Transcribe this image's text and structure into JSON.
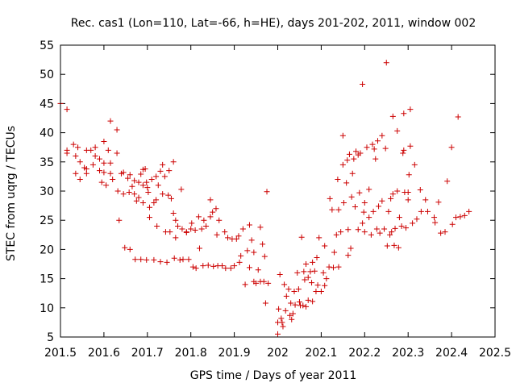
{
  "chart_data": {
    "type": "scatter",
    "title": "Rec. cas1 (Lon=110, Lat=-66, h=HE), days 201-202, 2011, window 002",
    "xlabel": "GPS time / Days of year 2011",
    "ylabel": "STEC from uqrg / TECUs",
    "xlim": [
      201.5,
      202.5
    ],
    "ylim": [
      5,
      55
    ],
    "xticks": [
      201.5,
      201.6,
      201.7,
      201.8,
      201.9,
      202,
      202.1,
      202.2,
      202.3,
      202.4,
      202.5
    ],
    "xtick_labels": [
      "201.5",
      "201.6",
      "201.7",
      "201.8",
      "201.9",
      "202",
      "202.1",
      "202.2",
      "202.3",
      "202.4",
      "202.5"
    ],
    "yticks": [
      5,
      10,
      15,
      20,
      25,
      30,
      35,
      40,
      45,
      50,
      55
    ],
    "ytick_labels": [
      "5",
      "10",
      "15",
      "20",
      "25",
      "30",
      "35",
      "40",
      "45",
      "50",
      "55"
    ],
    "grid": false,
    "marker": "+",
    "color": "#cc0000",
    "series": [
      {
        "name": "STEC",
        "points": [
          [
            201.5,
            45
          ],
          [
            201.515,
            44
          ],
          [
            201.515,
            37
          ],
          [
            201.515,
            36.5
          ],
          [
            201.53,
            38
          ],
          [
            201.535,
            36
          ],
          [
            201.54,
            37.5
          ],
          [
            201.535,
            33
          ],
          [
            201.545,
            35
          ],
          [
            201.545,
            32
          ],
          [
            201.555,
            34
          ],
          [
            201.56,
            37
          ],
          [
            201.56,
            33
          ],
          [
            201.56,
            33.8
          ],
          [
            201.57,
            37
          ],
          [
            201.575,
            34.5
          ],
          [
            201.58,
            36
          ],
          [
            201.58,
            37.5
          ],
          [
            201.59,
            35.5
          ],
          [
            201.59,
            33.5
          ],
          [
            201.595,
            31.5
          ],
          [
            201.6,
            38.5
          ],
          [
            201.6,
            34.8
          ],
          [
            201.6,
            33.2
          ],
          [
            201.605,
            31
          ],
          [
            201.61,
            37
          ],
          [
            201.615,
            42
          ],
          [
            201.615,
            34.8
          ],
          [
            201.615,
            33
          ],
          [
            201.62,
            32
          ],
          [
            201.63,
            40.5
          ],
          [
            201.63,
            36.5
          ],
          [
            201.632,
            30
          ],
          [
            201.635,
            25
          ],
          [
            201.64,
            33
          ],
          [
            201.645,
            33.2
          ],
          [
            201.645,
            29.5
          ],
          [
            201.648,
            20.3
          ],
          [
            201.655,
            32.2
          ],
          [
            201.658,
            29.8
          ],
          [
            201.66,
            32.8
          ],
          [
            201.66,
            20
          ],
          [
            201.665,
            30.8
          ],
          [
            201.67,
            31.8
          ],
          [
            201.67,
            29.5
          ],
          [
            201.672,
            18.3
          ],
          [
            201.675,
            28.3
          ],
          [
            201.68,
            31.5
          ],
          [
            201.68,
            28.9
          ],
          [
            201.685,
            32.9
          ],
          [
            201.685,
            18.3
          ],
          [
            201.69,
            33.7
          ],
          [
            201.69,
            31
          ],
          [
            201.69,
            28
          ],
          [
            201.695,
            33.8
          ],
          [
            201.698,
            31.5
          ],
          [
            201.698,
            18.2
          ],
          [
            201.7,
            30.6
          ],
          [
            201.702,
            29.8
          ],
          [
            201.705,
            27.2
          ],
          [
            201.705,
            25.5
          ],
          [
            201.71,
            32
          ],
          [
            201.715,
            18.2
          ],
          [
            201.715,
            28
          ],
          [
            201.72,
            32.5
          ],
          [
            201.72,
            28.5
          ],
          [
            201.722,
            24
          ],
          [
            201.725,
            31
          ],
          [
            201.73,
            33.4
          ],
          [
            201.73,
            17.9
          ],
          [
            201.735,
            34.5
          ],
          [
            201.735,
            29.5
          ],
          [
            201.74,
            32.5
          ],
          [
            201.742,
            23
          ],
          [
            201.745,
            17.8
          ],
          [
            201.748,
            29.3
          ],
          [
            201.75,
            33.5
          ],
          [
            201.752,
            23
          ],
          [
            201.755,
            28.7
          ],
          [
            201.76,
            35
          ],
          [
            201.76,
            26.2
          ],
          [
            201.762,
            18.5
          ],
          [
            201.765,
            25
          ],
          [
            201.765,
            22
          ],
          [
            201.77,
            24
          ],
          [
            201.775,
            18.2
          ],
          [
            201.778,
            30.3
          ],
          [
            201.78,
            23.5
          ],
          [
            201.782,
            18.3
          ],
          [
            201.79,
            23
          ],
          [
            201.79,
            22.9
          ],
          [
            201.795,
            18.3
          ],
          [
            201.8,
            23.5
          ],
          [
            201.802,
            24.5
          ],
          [
            201.805,
            17
          ],
          [
            201.81,
            23.3
          ],
          [
            201.812,
            16.8
          ],
          [
            201.818,
            25.6
          ],
          [
            201.82,
            20.2
          ],
          [
            201.825,
            23.5
          ],
          [
            201.828,
            17.2
          ],
          [
            201.83,
            25
          ],
          [
            201.835,
            24
          ],
          [
            201.84,
            17.3
          ],
          [
            201.845,
            25.6
          ],
          [
            201.845,
            28.5
          ],
          [
            201.85,
            26.4
          ],
          [
            201.852,
            17.1
          ],
          [
            201.858,
            27
          ],
          [
            201.86,
            22.5
          ],
          [
            201.862,
            17.2
          ],
          [
            201.865,
            25
          ],
          [
            201.872,
            17.2
          ],
          [
            201.878,
            23
          ],
          [
            201.88,
            16.8
          ],
          [
            201.885,
            22
          ],
          [
            201.892,
            16.8
          ],
          [
            201.895,
            21.8
          ],
          [
            201.9,
            17.2
          ],
          [
            201.905,
            21.8
          ],
          [
            201.91,
            22.3
          ],
          [
            201.912,
            17.8
          ],
          [
            201.915,
            18.9
          ],
          [
            201.92,
            23.5
          ],
          [
            201.925,
            14
          ],
          [
            201.93,
            19.8
          ],
          [
            201.935,
            24.2
          ],
          [
            201.935,
            16.9
          ],
          [
            201.94,
            21.6
          ],
          [
            201.945,
            19.5
          ],
          [
            201.945,
            14.5
          ],
          [
            201.95,
            14.2
          ],
          [
            201.955,
            16.5
          ],
          [
            201.96,
            23.8
          ],
          [
            201.96,
            14.5
          ],
          [
            201.965,
            20.9
          ],
          [
            201.968,
            14.5
          ],
          [
            201.97,
            18.8
          ],
          [
            201.972,
            10.8
          ],
          [
            201.975,
            29.9
          ],
          [
            201.978,
            14.2
          ],
          [
            202.0,
            5.5
          ],
          [
            202.0,
            7.5
          ],
          [
            202.002,
            9.8
          ],
          [
            202.005,
            15.7
          ],
          [
            202.008,
            8.2
          ],
          [
            202.01,
            7.5
          ],
          [
            202.012,
            6.8
          ],
          [
            202.015,
            14
          ],
          [
            202.018,
            9.5
          ],
          [
            202.02,
            12
          ],
          [
            202.025,
            13.2
          ],
          [
            202.028,
            8.7
          ],
          [
            202.03,
            10.8
          ],
          [
            202.032,
            8
          ],
          [
            202.035,
            9
          ],
          [
            202.038,
            12.8
          ],
          [
            202.04,
            10.5
          ],
          [
            202.045,
            16
          ],
          [
            202.048,
            13.2
          ],
          [
            202.05,
            11
          ],
          [
            202.052,
            10.4
          ],
          [
            202.055,
            22.1
          ],
          [
            202.058,
            10.4
          ],
          [
            202.06,
            16.2
          ],
          [
            202.062,
            14.8
          ],
          [
            202.065,
            17.5
          ],
          [
            202.065,
            10.2
          ],
          [
            202.07,
            15.2
          ],
          [
            202.07,
            11.3
          ],
          [
            202.075,
            16.2
          ],
          [
            202.078,
            14.3
          ],
          [
            202.08,
            17.8
          ],
          [
            202.08,
            11.1
          ],
          [
            202.085,
            16.3
          ],
          [
            202.088,
            12.8
          ],
          [
            202.09,
            18.6
          ],
          [
            202.092,
            13.9
          ],
          [
            202.095,
            22
          ],
          [
            202.1,
            12.8
          ],
          [
            202.105,
            16
          ],
          [
            202.108,
            20.6
          ],
          [
            202.108,
            13.8
          ],
          [
            202.112,
            15
          ],
          [
            202.118,
            17
          ],
          [
            202.12,
            28.7
          ],
          [
            202.125,
            26.8
          ],
          [
            202.128,
            16.9
          ],
          [
            202.13,
            19.5
          ],
          [
            202.135,
            22.5
          ],
          [
            202.138,
            32
          ],
          [
            202.14,
            17
          ],
          [
            202.14,
            26.8
          ],
          [
            202.145,
            23
          ],
          [
            202.15,
            34.5
          ],
          [
            202.15,
            39.5
          ],
          [
            202.152,
            28
          ],
          [
            202.158,
            31.4
          ],
          [
            202.16,
            35.3
          ],
          [
            202.162,
            23.4
          ],
          [
            202.162,
            19
          ],
          [
            202.165,
            36.3
          ],
          [
            202.168,
            20.2
          ],
          [
            202.17,
            29
          ],
          [
            202.172,
            33
          ],
          [
            202.175,
            35.5
          ],
          [
            202.178,
            27.3
          ],
          [
            202.18,
            36.8
          ],
          [
            202.185,
            23.4
          ],
          [
            202.185,
            36.2
          ],
          [
            202.188,
            29.7
          ],
          [
            202.19,
            36.5
          ],
          [
            202.195,
            24.5
          ],
          [
            202.195,
            48.3
          ],
          [
            202.198,
            26.4
          ],
          [
            202.2,
            23
          ],
          [
            202.2,
            28
          ],
          [
            202.205,
            37.5
          ],
          [
            202.21,
            25.5
          ],
          [
            202.21,
            30.3
          ],
          [
            202.215,
            22.5
          ],
          [
            202.218,
            38
          ],
          [
            202.22,
            26.5
          ],
          [
            202.222,
            37.2
          ],
          [
            202.225,
            35.5
          ],
          [
            202.228,
            23.5
          ],
          [
            202.23,
            38.6
          ],
          [
            202.232,
            27.4
          ],
          [
            202.235,
            22.8
          ],
          [
            202.24,
            39.5
          ],
          [
            202.24,
            28.3
          ],
          [
            202.245,
            23.5
          ],
          [
            202.248,
            37.3
          ],
          [
            202.25,
            52
          ],
          [
            202.252,
            20.6
          ],
          [
            202.255,
            26.5
          ],
          [
            202.258,
            22.5
          ],
          [
            202.26,
            28.7
          ],
          [
            202.262,
            23
          ],
          [
            202.265,
            42.8
          ],
          [
            202.265,
            29.5
          ],
          [
            202.268,
            20.7
          ],
          [
            202.27,
            23.6
          ],
          [
            202.275,
            40.3
          ],
          [
            202.275,
            30
          ],
          [
            202.278,
            20.3
          ],
          [
            202.28,
            25.5
          ],
          [
            202.285,
            24
          ],
          [
            202.288,
            36.5
          ],
          [
            202.29,
            37
          ],
          [
            202.29,
            43.3
          ],
          [
            202.292,
            29.8
          ],
          [
            202.295,
            23.7
          ],
          [
            202.3,
            28.5
          ],
          [
            202.3,
            29.8
          ],
          [
            202.302,
            32.8
          ],
          [
            202.305,
            44
          ],
          [
            202.305,
            37.7
          ],
          [
            202.31,
            24.5
          ],
          [
            202.315,
            34.5
          ],
          [
            202.32,
            25.2
          ],
          [
            202.328,
            30.2
          ],
          [
            202.33,
            26.5
          ],
          [
            202.34,
            28.5
          ],
          [
            202.345,
            26.5
          ],
          [
            202.36,
            25.5
          ],
          [
            202.362,
            24.6
          ],
          [
            202.37,
            28.1
          ],
          [
            202.375,
            22.8
          ],
          [
            202.385,
            23
          ],
          [
            202.39,
            31.7
          ],
          [
            202.4,
            37.5
          ],
          [
            202.402,
            24.3
          ],
          [
            202.41,
            25.5
          ],
          [
            202.415,
            42.7
          ],
          [
            202.42,
            25.6
          ],
          [
            202.43,
            25.8
          ],
          [
            202.44,
            26.5
          ]
        ]
      }
    ]
  }
}
